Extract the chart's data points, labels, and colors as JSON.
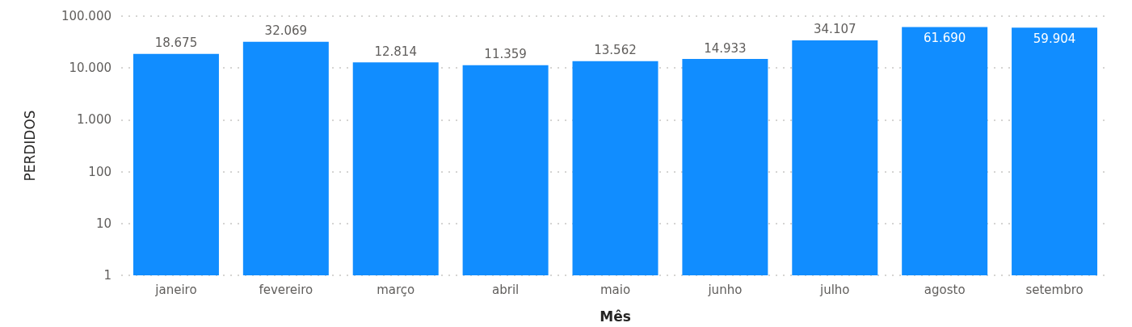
{
  "chart_data": {
    "type": "bar",
    "xlabel": "Mês",
    "ylabel": "PERDIDOS",
    "categories": [
      "janeiro",
      "fevereiro",
      "março",
      "abril",
      "maio",
      "junho",
      "julho",
      "agosto",
      "setembro"
    ],
    "values": [
      18675,
      32069,
      12814,
      11359,
      13562,
      14933,
      34107,
      61690,
      59904
    ],
    "value_labels": [
      "18.675",
      "32.069",
      "12.814",
      "11.359",
      "13.562",
      "14.933",
      "34.107",
      "61.690",
      "59.904"
    ],
    "color": "#118dff",
    "log": "y",
    "grid": "y",
    "ylim": [
      1,
      100000
    ],
    "yticks": [
      1,
      10,
      100,
      {
        "value": 1000,
        "label": "1.000"
      },
      {
        "value": 10000,
        "label": "10.000"
      },
      {
        "value": 100000,
        "label": "100.000"
      }
    ]
  }
}
